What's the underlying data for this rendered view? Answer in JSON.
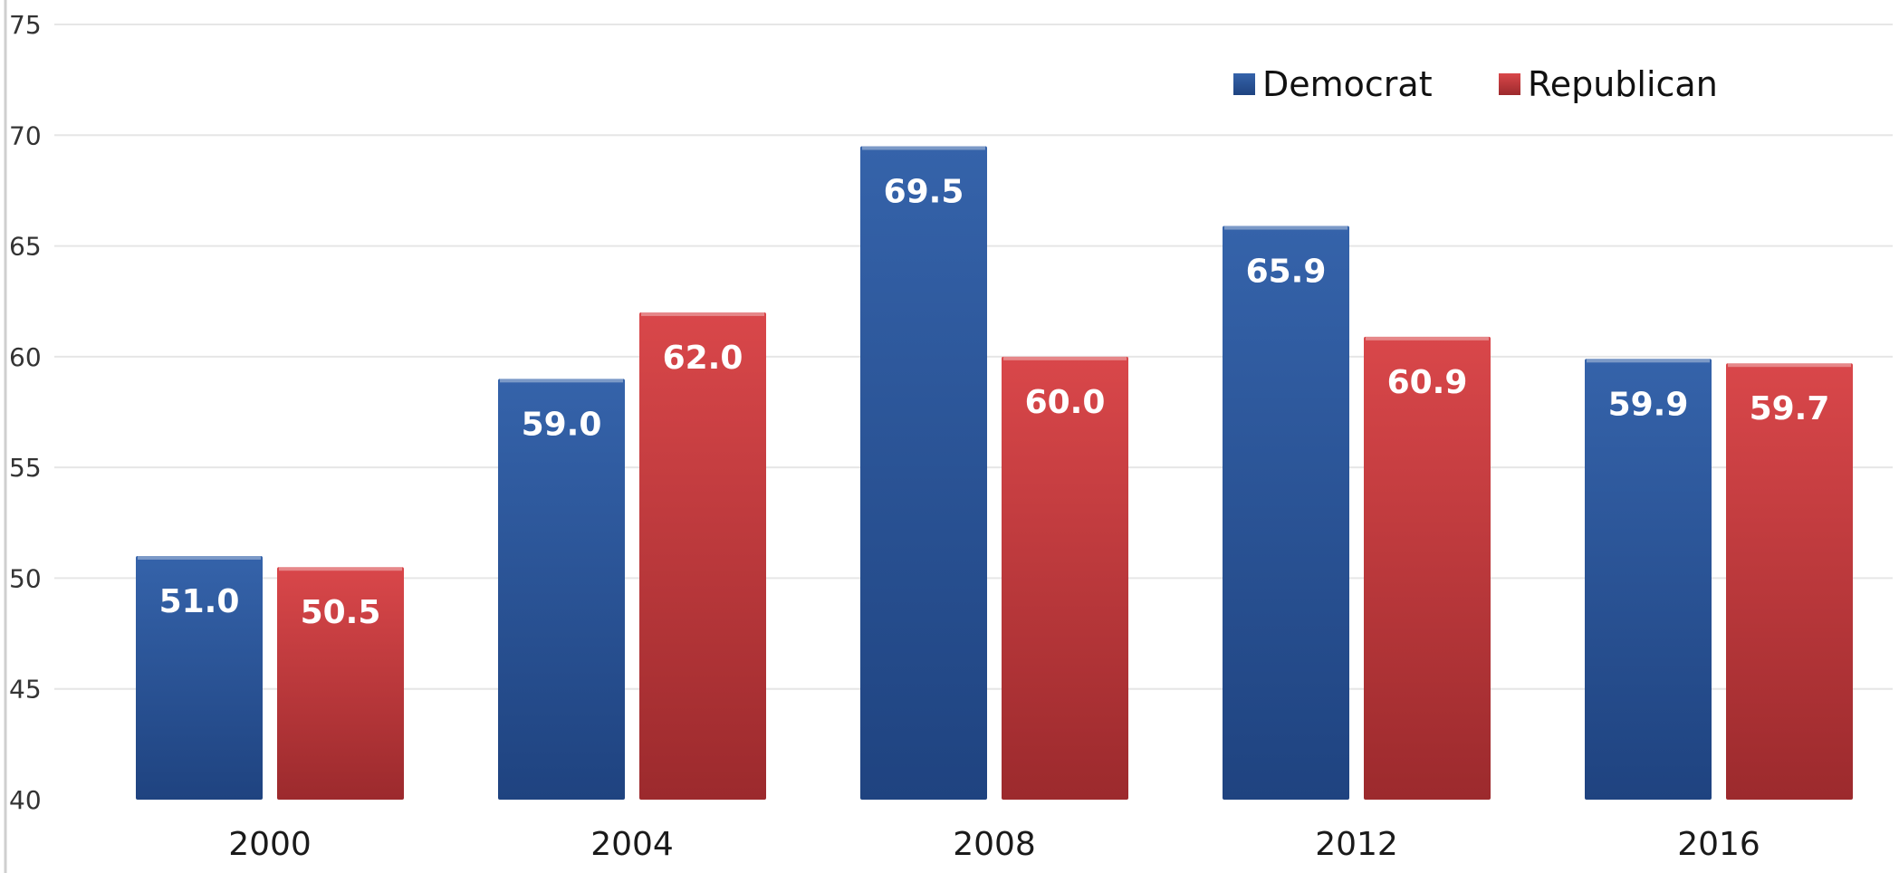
{
  "chart_data": {
    "type": "bar",
    "categories": [
      "2000",
      "2004",
      "2008",
      "2012",
      "2016"
    ],
    "series": [
      {
        "name": "Democrat",
        "color": "#2b5597",
        "values": [
          51.0,
          59.0,
          69.5,
          65.9,
          59.9
        ],
        "labels": [
          "51.0",
          "59.0",
          "69.5",
          "65.9",
          "59.9"
        ]
      },
      {
        "name": "Republican",
        "color": "#c0393b",
        "values": [
          50.5,
          62.0,
          60.0,
          60.9,
          59.7
        ],
        "labels": [
          "50.5",
          "62.0",
          "60.0",
          "60.9",
          "59.7"
        ]
      }
    ],
    "ylim": [
      40,
      75
    ],
    "yticks": [
      "40",
      "45",
      "50",
      "55",
      "60",
      "65",
      "70",
      "75"
    ],
    "grid": true,
    "legend": "top-right"
  }
}
